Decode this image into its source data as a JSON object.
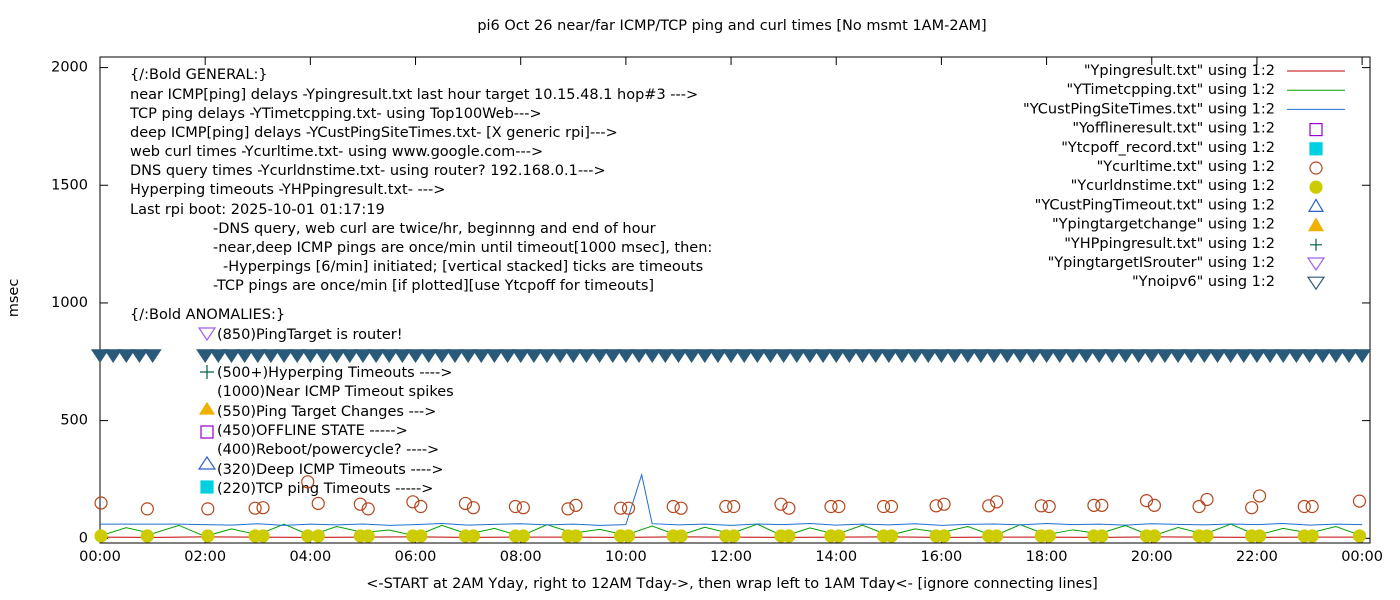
{
  "chart_data": {
    "type": "line",
    "title": "pi6 Oct 26  near/far ICMP/TCP ping and curl times [No msmt 1AM-2AM]",
    "xlabel": "<-START at 2AM Yday, right to 12AM Tday->, then wrap left to 1AM Tday<- [ignore connecting lines]",
    "ylabel": "msec",
    "xlim": [
      0,
      24.15
    ],
    "ylim": [
      -20,
      2045
    ],
    "xticks": [
      {
        "value": 0,
        "label": "00:00"
      },
      {
        "value": 2,
        "label": "02:00"
      },
      {
        "value": 4,
        "label": "04:00"
      },
      {
        "value": 6,
        "label": "06:00"
      },
      {
        "value": 8,
        "label": "08:00"
      },
      {
        "value": 10,
        "label": "10:00"
      },
      {
        "value": 12,
        "label": "12:00"
      },
      {
        "value": 14,
        "label": "14:00"
      },
      {
        "value": 16,
        "label": "16:00"
      },
      {
        "value": 18,
        "label": "18:00"
      },
      {
        "value": 20,
        "label": "20:00"
      },
      {
        "value": 22,
        "label": "22:00"
      },
      {
        "value": 24,
        "label": "00:00"
      }
    ],
    "yticks": [
      0,
      500,
      1000,
      1500,
      2000
    ],
    "grid": false,
    "legend": "top-right",
    "annotations": [
      "{/:Bold GENERAL:}",
      "near ICMP[ping] delays -Ypingresult.txt last hour target 10.15.48.1 hop#3 --->",
      "TCP ping delays -YTimetcpping.txt- using Top100Web--->",
      "deep ICMP[ping] delays -YCustPingSiteTimes.txt- [X generic rpi]--->",
      "web curl times -Ycurltime.txt- using www.google.com--->",
      "DNS query times -Ycurldnstime.txt- using router? 192.168.0.1--->",
      "Hyperping timeouts -YHPpingresult.txt- --->",
      "Last rpi boot: 2025-10-01 01:17:19",
      "-DNS query, web curl are twice/hr, beginnng and end of hour",
      "-near,deep ICMP pings are once/min until timeout[1000 msec], then:",
      "-Hyperpings [6/min] initiated; [vertical stacked] ticks are timeouts",
      "-TCP pings are once/min [if plotted][use Ytcpoff for timeouts]",
      "{/:Bold ANOMALIES:}",
      "(850)PingTarget is router!",
      "(500+)Hyperping Timeouts ---->",
      "(1000)Near ICMP Timeout spikes",
      "(550)Ping Target Changes --->",
      "(450)OFFLINE STATE ----->",
      "(400)Reboot/powercycle? ---->",
      "(320)Deep ICMP Timeouts ---->",
      "(220)TCP ping Timeouts ----->"
    ],
    "series": [
      {
        "name": "\"Ypingresult.txt\" using 1:2",
        "style": "line",
        "color": "#c00000",
        "x": [
          0,
          1,
          2,
          3,
          4,
          5,
          6,
          7,
          8,
          9,
          10,
          11,
          12,
          13,
          14,
          15,
          16,
          17,
          18,
          19,
          20,
          21,
          22,
          23,
          24
        ],
        "values": [
          5,
          4,
          6,
          5,
          4,
          5,
          6,
          4,
          5,
          5,
          4,
          6,
          5,
          4,
          5,
          6,
          4,
          5,
          5,
          4,
          6,
          5,
          4,
          5,
          5
        ]
      },
      {
        "name": "\"YTimetcpping.txt\" using 1:2",
        "style": "line",
        "color": "#00a000",
        "x": [
          0,
          0.5,
          1,
          1.5,
          2,
          2.5,
          3,
          3.5,
          4,
          4.5,
          5,
          5.5,
          6,
          6.5,
          7,
          7.5,
          8,
          8.5,
          9,
          9.5,
          10,
          10.5,
          11,
          11.5,
          12,
          12.5,
          13,
          13.5,
          14,
          14.5,
          15,
          15.5,
          16,
          16.5,
          17,
          17.5,
          18,
          18.5,
          19,
          19.5,
          20,
          20.5,
          21,
          21.5,
          22,
          22.5,
          23,
          23.5,
          24
        ],
        "values": [
          10,
          45,
          20,
          55,
          8,
          40,
          15,
          60,
          12,
          50,
          25,
          35,
          10,
          55,
          18,
          42,
          9,
          58,
          22,
          38,
          14,
          52,
          11,
          47,
          20,
          60,
          8,
          44,
          16,
          56,
          12,
          40,
          24,
          50,
          10,
          58,
          15,
          36,
          20,
          54,
          9,
          46,
          18,
          60,
          13,
          42,
          22,
          50,
          10
        ]
      },
      {
        "name": "\"YCustPingSiteTimes.txt\" using 1:2",
        "style": "line",
        "color": "#1f6fd0",
        "x": [
          0,
          0.5,
          1,
          1.5,
          2,
          2.5,
          3,
          3.5,
          4,
          4.5,
          5,
          5.5,
          6,
          6.5,
          7,
          7.5,
          8,
          8.5,
          9,
          9.5,
          10,
          10.3,
          10.5,
          11,
          11.5,
          12,
          12.5,
          13,
          13.5,
          14,
          14.5,
          15,
          15.5,
          16,
          16.5,
          17,
          17.5,
          18,
          18.5,
          19,
          19.5,
          20,
          20.5,
          21,
          21.5,
          22,
          22.5,
          23,
          23.5,
          24
        ],
        "values": [
          60,
          60,
          60,
          60,
          58,
          56,
          62,
          55,
          60,
          57,
          61,
          55,
          58,
          63,
          56,
          59,
          62,
          57,
          60,
          55,
          58,
          270,
          62,
          57,
          60,
          55,
          61,
          58,
          63,
          56,
          60,
          57,
          62,
          55,
          59,
          61,
          57,
          63,
          58,
          60,
          56,
          62,
          59,
          57,
          61,
          58,
          63,
          56,
          60,
          58
        ]
      },
      {
        "name": "\"Yofflineresult.txt\" using 1:2",
        "style": "points",
        "marker": "square-open",
        "color": "#9400d3",
        "x": [],
        "values": []
      },
      {
        "name": "\"Ytcpoff_record.txt\" using 1:2",
        "style": "points",
        "marker": "square",
        "color": "#00d0e0",
        "x": [],
        "values": []
      },
      {
        "name": "\"Ycurltime.txt\" using 1:2",
        "style": "points",
        "marker": "circle-open",
        "color": "#b5451b",
        "x": [
          0.02,
          0.9,
          2.05,
          2.95,
          3.1,
          3.95,
          4.15,
          4.95,
          5.1,
          5.95,
          6.1,
          6.95,
          7.1,
          7.9,
          8.05,
          8.9,
          9.05,
          9.9,
          10.05,
          10.9,
          11.05,
          11.9,
          12.05,
          12.95,
          13.1,
          13.9,
          14.05,
          14.9,
          15.05,
          15.9,
          16.05,
          16.9,
          17.05,
          17.9,
          18.05,
          18.9,
          19.05,
          19.9,
          20.05,
          20.9,
          21.05,
          21.9,
          22.05,
          22.9,
          23.05,
          23.95
        ],
        "values": [
          150,
          125,
          125,
          128,
          130,
          240,
          148,
          145,
          125,
          155,
          135,
          148,
          130,
          135,
          130,
          125,
          140,
          128,
          128,
          135,
          128,
          135,
          135,
          145,
          128,
          135,
          135,
          135,
          135,
          138,
          145,
          138,
          155,
          138,
          135,
          140,
          140,
          160,
          140,
          135,
          165,
          130,
          180,
          135,
          135,
          158
        ]
      },
      {
        "name": "\"Ycurldnstime.txt\" using 1:2",
        "style": "points",
        "marker": "circle",
        "color": "#cccc00",
        "x": [
          0.02,
          0.9,
          2.05,
          2.95,
          3.1,
          3.95,
          4.15,
          4.95,
          5.1,
          5.95,
          6.1,
          6.95,
          7.1,
          7.9,
          8.05,
          8.9,
          9.05,
          9.9,
          10.05,
          10.9,
          11.05,
          11.9,
          12.05,
          12.95,
          13.1,
          13.9,
          14.05,
          14.9,
          15.05,
          15.9,
          16.05,
          16.9,
          17.05,
          17.9,
          18.05,
          18.9,
          19.05,
          19.9,
          20.05,
          20.9,
          21.05,
          21.9,
          22.05,
          22.9,
          23.05,
          23.95
        ],
        "values": [
          10,
          10,
          10,
          10,
          10,
          10,
          10,
          10,
          10,
          10,
          10,
          10,
          10,
          10,
          10,
          10,
          10,
          10,
          10,
          10,
          10,
          10,
          10,
          10,
          10,
          10,
          10,
          10,
          10,
          10,
          10,
          10,
          10,
          10,
          10,
          10,
          10,
          10,
          10,
          10,
          10,
          10,
          10,
          10,
          10,
          10
        ]
      },
      {
        "name": "\"YCustPingTimeout.txt\" using 1:2",
        "style": "points",
        "marker": "triangle-open",
        "color": "#3060c8",
        "x": [],
        "values": []
      },
      {
        "name": "\"Ypingtargetchange\" using 1:2",
        "style": "points",
        "marker": "triangle",
        "color": "#f0b000",
        "x": [],
        "values": []
      },
      {
        "name": "\"YHPpingresult.txt\" using 1:2",
        "style": "points",
        "marker": "plus",
        "color": "#006040",
        "x": [],
        "values": []
      },
      {
        "name": "\"YpingtargetISrouter\" using 1:2",
        "style": "points",
        "marker": "tri-down-open",
        "color": "#a060f0",
        "x": [],
        "values": []
      },
      {
        "name": "\"Ynoipv6\" using 1:2",
        "style": "points",
        "marker": "tri-down-open",
        "color": "#2a5a7a",
        "x": [
          0,
          0.25,
          0.5,
          0.75,
          1,
          2,
          2.25,
          2.5,
          2.75,
          3,
          3.25,
          3.5,
          3.75,
          4,
          4.25,
          4.5,
          4.75,
          5,
          5.25,
          5.5,
          5.75,
          6,
          6.25,
          6.5,
          6.75,
          7,
          7.25,
          7.5,
          7.75,
          8,
          8.25,
          8.5,
          8.75,
          9,
          9.25,
          9.5,
          9.75,
          10,
          10.25,
          10.5,
          10.75,
          11,
          11.25,
          11.5,
          11.75,
          12,
          12.25,
          12.5,
          12.75,
          13,
          13.25,
          13.5,
          13.75,
          14,
          14.25,
          14.5,
          14.75,
          15,
          15.25,
          15.5,
          15.75,
          16,
          16.25,
          16.5,
          16.75,
          17,
          17.25,
          17.5,
          17.75,
          18,
          18.25,
          18.5,
          18.75,
          19,
          19.25,
          19.5,
          19.75,
          20,
          20.25,
          20.5,
          20.75,
          21,
          21.25,
          21.5,
          21.75,
          22,
          22.25,
          22.5,
          22.75,
          23,
          23.25,
          23.5,
          23.75,
          24
        ],
        "values": [
          775,
          775,
          775,
          775,
          775,
          775,
          775,
          775,
          775,
          775,
          775,
          775,
          775,
          775,
          775,
          775,
          775,
          775,
          775,
          775,
          775,
          775,
          775,
          775,
          775,
          775,
          775,
          775,
          775,
          775,
          775,
          775,
          775,
          775,
          775,
          775,
          775,
          775,
          775,
          775,
          775,
          775,
          775,
          775,
          775,
          775,
          775,
          775,
          775,
          775,
          775,
          775,
          775,
          775,
          775,
          775,
          775,
          775,
          775,
          775,
          775,
          775,
          775,
          775,
          775,
          775,
          775,
          775,
          775,
          775,
          775,
          775,
          775,
          775,
          775,
          775,
          775,
          775,
          775,
          775,
          775,
          775,
          775,
          775,
          775,
          775,
          775,
          775,
          775,
          775,
          775,
          775,
          775,
          775
        ]
      }
    ]
  }
}
